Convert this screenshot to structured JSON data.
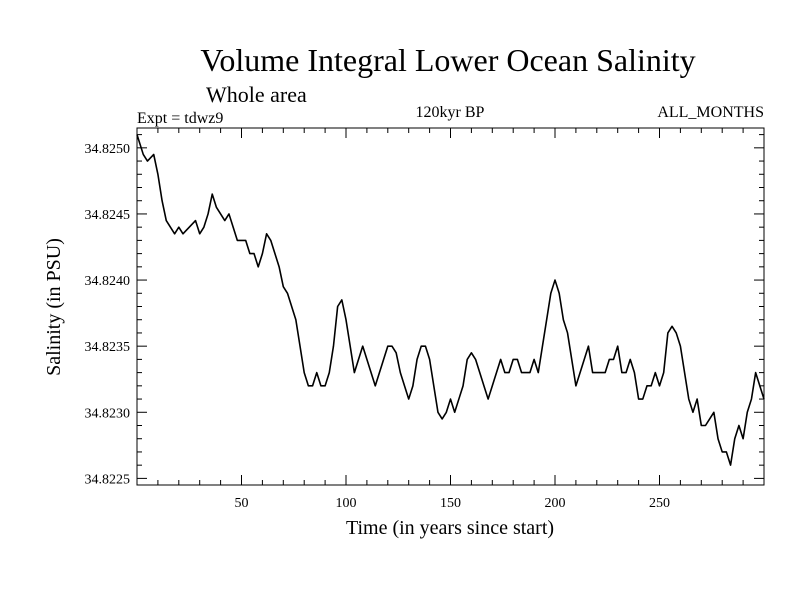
{
  "chart_data": {
    "type": "line",
    "title": "Volume Integral Lower Ocean Salinity",
    "subtitle": "Whole area",
    "experiment": "Expt = tdwz9",
    "period": "120kyr BP",
    "months": "ALL_MONTHS",
    "xlabel": "Time (in years since start)",
    "ylabel": "Salinity (in PSU)",
    "xlim": [
      0,
      300
    ],
    "ylim": [
      34.82245,
      34.82515
    ],
    "x_ticks": [
      50,
      100,
      150,
      200,
      250
    ],
    "x_tick_labels": [
      "50",
      "100",
      "150",
      "200",
      "250"
    ],
    "y_ticks": [
      34.8225,
      34.823,
      34.8235,
      34.824,
      34.8245,
      34.825
    ],
    "y_tick_labels": [
      "34.8225",
      "34.8230",
      "34.8235",
      "34.8240",
      "34.8245",
      "34.8250"
    ],
    "series": [
      {
        "name": "Salinity",
        "x": [
          0,
          3,
          5,
          8,
          10,
          12,
          14,
          16,
          18,
          20,
          22,
          25,
          28,
          30,
          32,
          34,
          36,
          38,
          40,
          42,
          44,
          46,
          48,
          50,
          52,
          54,
          56,
          58,
          60,
          62,
          64,
          66,
          68,
          70,
          72,
          74,
          76,
          78,
          80,
          82,
          84,
          86,
          88,
          90,
          92,
          94,
          96,
          98,
          100,
          102,
          104,
          106,
          108,
          110,
          112,
          114,
          116,
          118,
          120,
          122,
          124,
          126,
          128,
          130,
          132,
          134,
          136,
          138,
          140,
          142,
          144,
          146,
          148,
          150,
          152,
          154,
          156,
          158,
          160,
          162,
          164,
          166,
          168,
          170,
          172,
          174,
          176,
          178,
          180,
          182,
          184,
          186,
          188,
          190,
          192,
          194,
          196,
          198,
          200,
          202,
          204,
          206,
          208,
          210,
          212,
          214,
          216,
          218,
          220,
          222,
          224,
          226,
          228,
          230,
          232,
          234,
          236,
          238,
          240,
          242,
          244,
          246,
          248,
          250,
          252,
          254,
          256,
          258,
          260,
          262,
          264,
          266,
          268,
          270,
          272,
          274,
          276,
          278,
          280,
          282,
          284,
          286,
          288,
          290,
          292,
          294,
          296,
          298,
          300
        ],
        "values": [
          34.8251,
          34.82495,
          34.8249,
          34.82495,
          34.8248,
          34.8246,
          34.82445,
          34.8244,
          34.82435,
          34.8244,
          34.82435,
          34.8244,
          34.82445,
          34.82435,
          34.8244,
          34.8245,
          34.82465,
          34.82455,
          34.8245,
          34.82445,
          34.8245,
          34.8244,
          34.8243,
          34.8243,
          34.8243,
          34.8242,
          34.8242,
          34.8241,
          34.8242,
          34.82435,
          34.8243,
          34.8242,
          34.8241,
          34.82395,
          34.8239,
          34.8238,
          34.8237,
          34.8235,
          34.8233,
          34.8232,
          34.8232,
          34.8233,
          34.8232,
          34.8232,
          34.8233,
          34.8235,
          34.8238,
          34.82385,
          34.8237,
          34.8235,
          34.8233,
          34.8234,
          34.8235,
          34.8234,
          34.8233,
          34.8232,
          34.8233,
          34.8234,
          34.8235,
          34.8235,
          34.82345,
          34.8233,
          34.8232,
          34.8231,
          34.8232,
          34.8234,
          34.8235,
          34.8235,
          34.8234,
          34.8232,
          34.823,
          34.82295,
          34.823,
          34.8231,
          34.823,
          34.8231,
          34.8232,
          34.8234,
          34.82345,
          34.8234,
          34.8233,
          34.8232,
          34.8231,
          34.8232,
          34.8233,
          34.8234,
          34.8233,
          34.8233,
          34.8234,
          34.8234,
          34.8233,
          34.8233,
          34.8233,
          34.8234,
          34.8233,
          34.8235,
          34.8237,
          34.8239,
          34.824,
          34.8239,
          34.8237,
          34.8236,
          34.8234,
          34.8232,
          34.8233,
          34.8234,
          34.8235,
          34.8233,
          34.8233,
          34.8233,
          34.8233,
          34.8234,
          34.8234,
          34.8235,
          34.8233,
          34.8233,
          34.8234,
          34.8233,
          34.8231,
          34.8231,
          34.8232,
          34.8232,
          34.8233,
          34.8232,
          34.8233,
          34.8236,
          34.82365,
          34.8236,
          34.8235,
          34.8233,
          34.8231,
          34.823,
          34.8231,
          34.8229,
          34.8229,
          34.82295,
          34.823,
          34.8228,
          34.8227,
          34.8227,
          34.8226,
          34.8228,
          34.8229,
          34.8228,
          34.823,
          34.8231,
          34.8233,
          34.8232,
          34.8231
        ]
      }
    ]
  }
}
